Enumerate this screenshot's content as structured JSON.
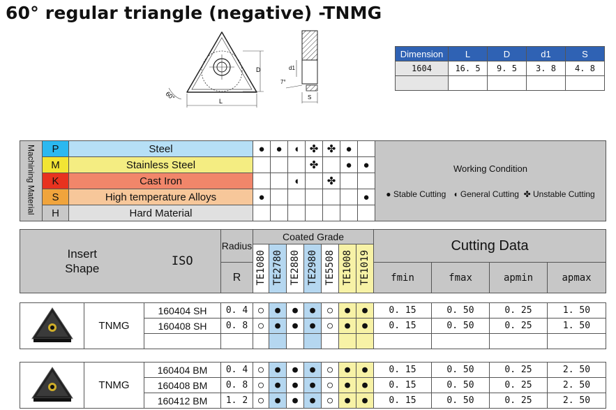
{
  "title": "60° regular triangle (negative) -TNMG",
  "drawing": {
    "d_label": "D",
    "l_label": "L",
    "angle_label": "60°",
    "d1_label": "d1",
    "s_label": "S",
    "seven_label": "7°"
  },
  "dimension": {
    "headers": [
      "Dimension",
      "L",
      "D",
      "d1",
      "S"
    ],
    "rows": [
      [
        "1604",
        "16. 5",
        "9. 5",
        "3. 8",
        "4. 8"
      ]
    ]
  },
  "material": {
    "side_label": "Machining Material",
    "rows": [
      {
        "code": "P",
        "name": "Steel",
        "color": "#2bb8f0",
        "bg": "#b6dff6"
      },
      {
        "code": "M",
        "name": "Stainless Steel",
        "color": "#f2e534",
        "bg": "#f4ed82"
      },
      {
        "code": "K",
        "name": "Cast Iron",
        "color": "#e8321f",
        "bg": "#f1866a"
      },
      {
        "code": "S",
        "name": "High temperature Alloys",
        "color": "#f0a43c",
        "bg": "#f7c79a"
      },
      {
        "code": "H",
        "name": "Hard Material",
        "color": "#c8c8c8",
        "bg": "#e0e0e0"
      }
    ],
    "symbols": [
      [
        "●",
        "●",
        "◖",
        "✤",
        "✤",
        "●",
        ""
      ],
      [
        "",
        "",
        "",
        "✤",
        "",
        "●",
        "●"
      ],
      [
        "",
        "",
        "◖",
        "",
        "✤",
        "",
        ""
      ],
      [
        "●",
        "",
        "",
        "",
        "",
        "",
        "●"
      ],
      [
        "",
        "",
        "",
        "",
        "",
        "",
        ""
      ]
    ],
    "working_condition": "Working Condition",
    "legend": [
      "Stable Cutting",
      "General Cutting",
      "Unstable Cutting"
    ]
  },
  "grade": {
    "insert_shape": "Insert Shape",
    "iso": "ISO",
    "radius": "Radius",
    "r": "R",
    "coated_grade": "Coated Grade",
    "grades": [
      "TE1080",
      "TE2780",
      "TE2880",
      "TE2980",
      "TE5508",
      "TE1008",
      "TE1019"
    ],
    "cutting_data": "Cutting Data",
    "cols": [
      "fmin",
      "fmax",
      "apmin",
      "apmax"
    ]
  },
  "groups": [
    {
      "family": "TNMG",
      "rows": [
        {
          "code": "160404 SH",
          "r": "0. 4",
          "g": [
            "○",
            "●",
            "●",
            "●",
            "○",
            "●",
            "●"
          ],
          "fmin": "0. 15",
          "fmax": "0. 50",
          "apmin": "0. 25",
          "apmax": "1. 50"
        },
        {
          "code": "160408 SH",
          "r": "0. 8",
          "g": [
            "○",
            "●",
            "●",
            "●",
            "○",
            "●",
            "●"
          ],
          "fmin": "0. 15",
          "fmax": "0. 50",
          "apmin": "0. 25",
          "apmax": "1. 50"
        }
      ]
    },
    {
      "family": "TNMG",
      "rows": [
        {
          "code": "160404 BM",
          "r": "0. 4",
          "g": [
            "○",
            "●",
            "●",
            "●",
            "○",
            "●",
            "●"
          ],
          "fmin": "0. 15",
          "fmax": "0. 50",
          "apmin": "0. 25",
          "apmax": "2. 50"
        },
        {
          "code": "160408 BM",
          "r": "0. 8",
          "g": [
            "○",
            "●",
            "●",
            "●",
            "○",
            "●",
            "●"
          ],
          "fmin": "0. 15",
          "fmax": "0. 50",
          "apmin": "0. 25",
          "apmax": "2. 50"
        },
        {
          "code": "160412 BM",
          "r": "1. 2",
          "g": [
            "○",
            "●",
            "●",
            "●",
            "○",
            "●",
            "●"
          ],
          "fmin": "0. 15",
          "fmax": "0. 50",
          "apmin": "0. 25",
          "apmax": "2. 50"
        }
      ]
    }
  ]
}
